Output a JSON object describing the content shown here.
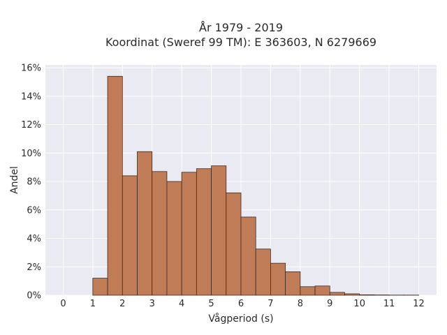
{
  "chart_data": {
    "type": "bar",
    "title": "År 1979 - 2019",
    "subtitle": "Koordinat (Sweref 99 TM): E 363603, N 6279669",
    "xlabel": "Vågperiod (s)",
    "ylabel": "Andel",
    "xlim": [
      -0.6,
      12.6
    ],
    "ylim": [
      0,
      0.162
    ],
    "x_ticks": [
      0,
      1,
      2,
      3,
      4,
      5,
      6,
      7,
      8,
      9,
      10,
      11,
      12
    ],
    "x_tick_labels": [
      "0",
      "1",
      "2",
      "3",
      "4",
      "5",
      "6",
      "7",
      "8",
      "9",
      "10",
      "11",
      "12"
    ],
    "y_ticks": [
      0,
      0.02,
      0.04,
      0.06,
      0.08,
      0.1,
      0.12,
      0.14,
      0.16
    ],
    "y_tick_labels": [
      "0%",
      "2%",
      "4%",
      "6%",
      "8%",
      "10%",
      "12%",
      "14%",
      "16%"
    ],
    "bin_width": 0.5,
    "bin_starts": [
      1.0,
      1.5,
      2.0,
      2.5,
      3.0,
      3.5,
      4.0,
      4.5,
      5.0,
      5.5,
      6.0,
      6.5,
      7.0,
      7.5,
      8.0,
      8.5,
      9.0,
      9.5,
      10.0,
      10.5,
      11.0,
      11.5
    ],
    "values": [
      0.012,
      0.154,
      0.084,
      0.101,
      0.087,
      0.08,
      0.0865,
      0.089,
      0.091,
      0.072,
      0.055,
      0.0325,
      0.0225,
      0.0165,
      0.006,
      0.0065,
      0.002,
      0.001,
      0.0003,
      0.0002,
      0.0001,
      0.0001
    ],
    "grid": true,
    "colors": {
      "bar_fill": "#c07c56",
      "bar_edge": "#3d2a1f",
      "plot_background": "#eaeaf2",
      "grid": "#ffffff"
    }
  }
}
